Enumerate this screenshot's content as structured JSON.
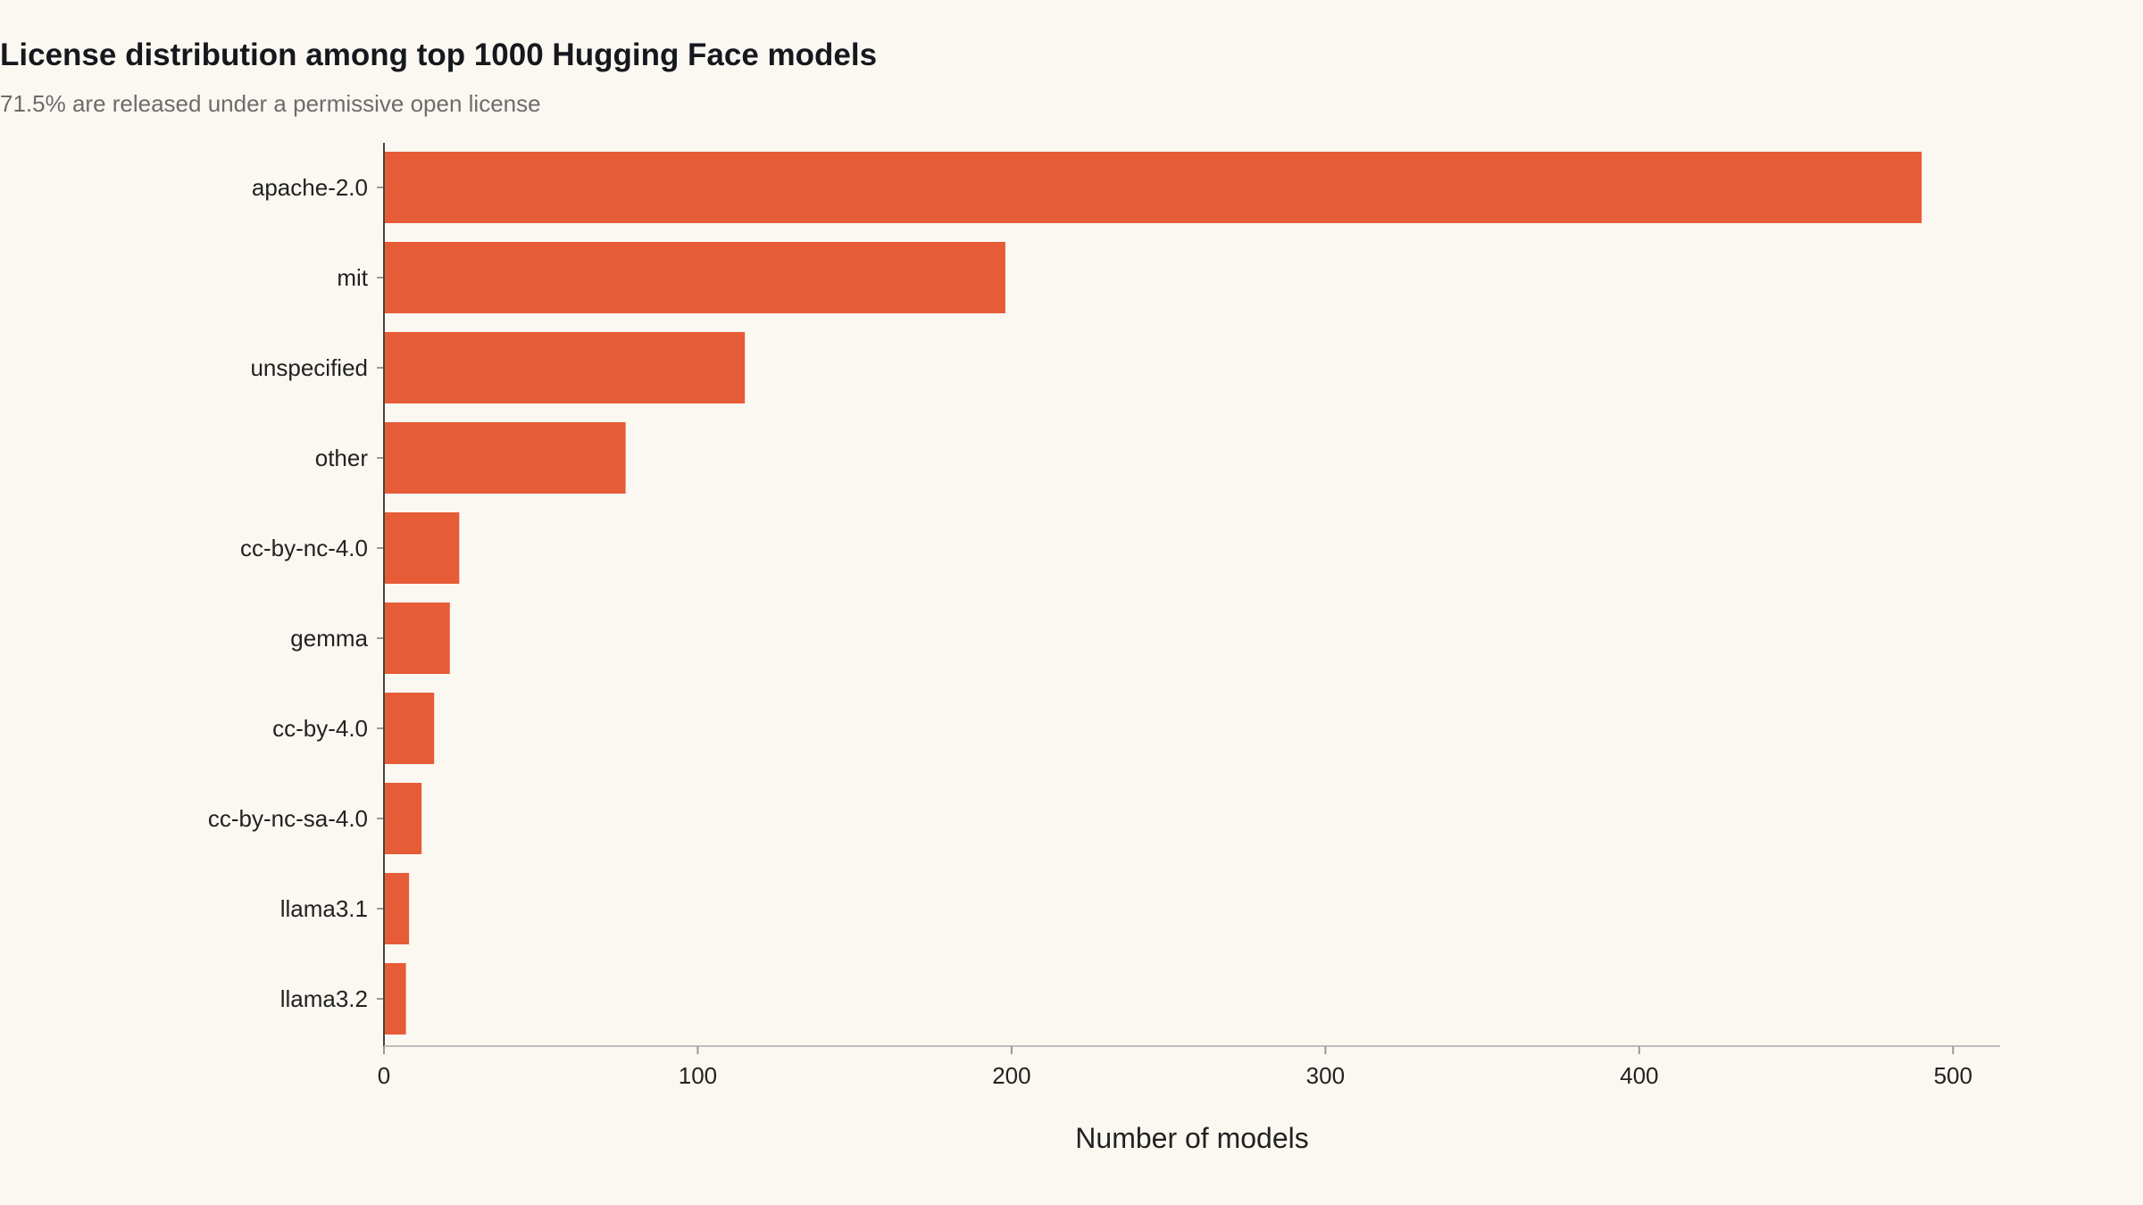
{
  "chart_data": {
    "type": "bar",
    "orientation": "horizontal",
    "title": "License distribution among top 1000 Hugging Face models",
    "subtitle": "71.5% are released under a permissive open license",
    "xlabel": "Number of models",
    "ylabel": "",
    "xlim": [
      0,
      515
    ],
    "xticks": [
      0,
      100,
      200,
      300,
      400,
      500
    ],
    "grid": false,
    "categories": [
      "apache-2.0",
      "mit",
      "unspecified",
      "other",
      "cc-by-nc-4.0",
      "gemma",
      "cc-by-4.0",
      "cc-by-nc-sa-4.0",
      "llama3.1",
      "llama3.2"
    ],
    "values": [
      490,
      198,
      115,
      77,
      24,
      21,
      16,
      12,
      8,
      7
    ],
    "colors": {
      "bar": "#e65c37",
      "background": "#fbf8f2"
    }
  }
}
